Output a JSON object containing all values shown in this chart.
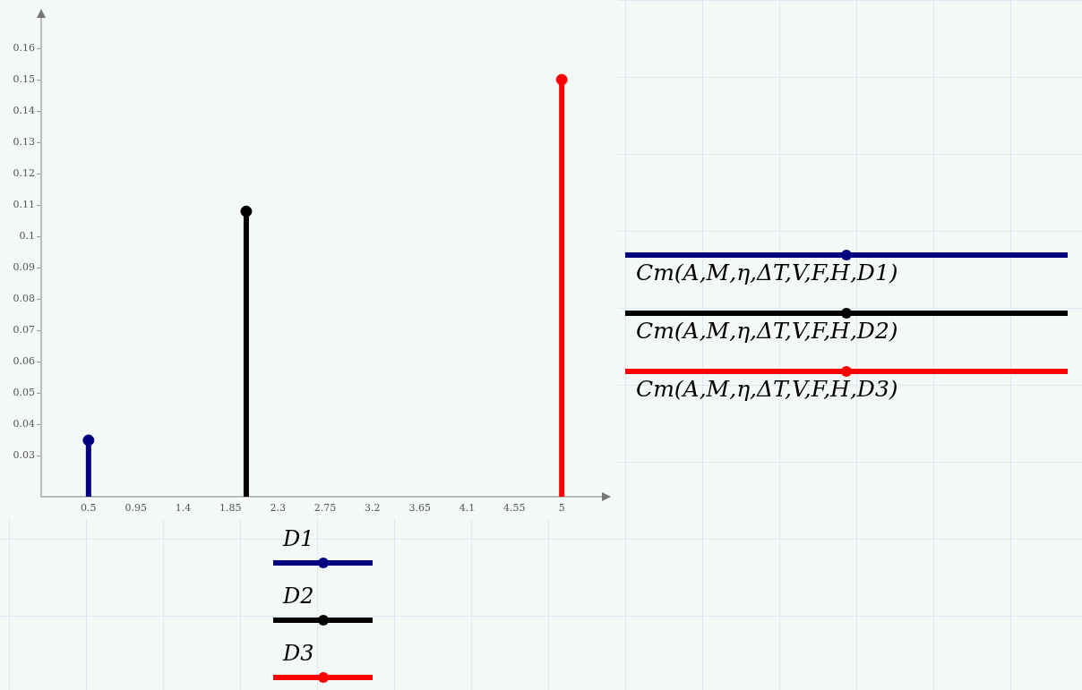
{
  "chart_data": {
    "type": "lollipop",
    "series": [
      {
        "name": "Cm(A,M,η,ΔT,V,F,H,D1)",
        "color": "#000080",
        "x": [
          0.5
        ],
        "values": [
          0.035
        ]
      },
      {
        "name": "Cm(A,M,η,ΔT,V,F,H,D2)",
        "color": "#000000",
        "x": [
          2.0
        ],
        "values": [
          0.108
        ]
      },
      {
        "name": "Cm(A,M,η,ΔT,V,F,H,D3)",
        "color": "#ff0000",
        "x": [
          5
        ],
        "values": [
          0.15
        ]
      }
    ],
    "annotations": [
      "D1",
      "D2",
      "D3"
    ],
    "xlim": [
      0.05,
      5.45
    ],
    "xticks": [
      0.5,
      0.95,
      1.4,
      1.85,
      2.3,
      2.75,
      3.2,
      3.65,
      4.1,
      4.55,
      5
    ],
    "ylim": [
      0.017,
      0.172
    ],
    "yticks": [
      0.03,
      0.04,
      0.05,
      0.06,
      0.07,
      0.08,
      0.09,
      0.1,
      0.11,
      0.12,
      0.13,
      0.14,
      0.15,
      0.16
    ],
    "grid": false,
    "legend": "right",
    "marker": "circle"
  }
}
